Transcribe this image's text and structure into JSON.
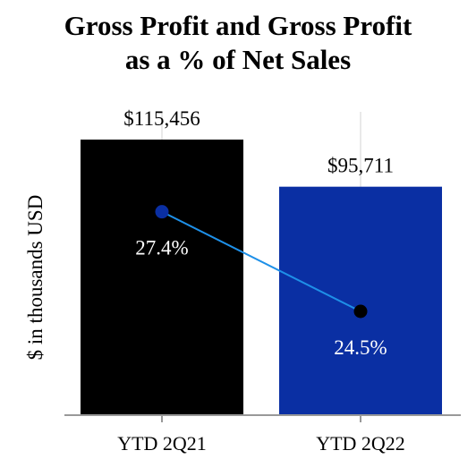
{
  "chart_data": {
    "type": "bar",
    "title_lines": [
      "Gross Profit and Gross Profit",
      "as a % of Net Sales"
    ],
    "ylabel": "$ in thousands USD",
    "xlabel": "",
    "categories": [
      "YTD 2Q21",
      "YTD 2Q22"
    ],
    "values": [
      115456,
      95711
    ],
    "value_labels": [
      "$115,456",
      "$95,711"
    ],
    "bar_colors": [
      "#000000",
      "#0A2FA3"
    ],
    "ylim": [
      0,
      115456
    ],
    "grid": false,
    "overlay_line": {
      "values": [
        27.4,
        24.5
      ],
      "labels": [
        "27.4%",
        "24.5%"
      ],
      "line_color": "#1E90E8",
      "marker_colors": [
        "#0A2FA3",
        "#000000"
      ]
    }
  }
}
